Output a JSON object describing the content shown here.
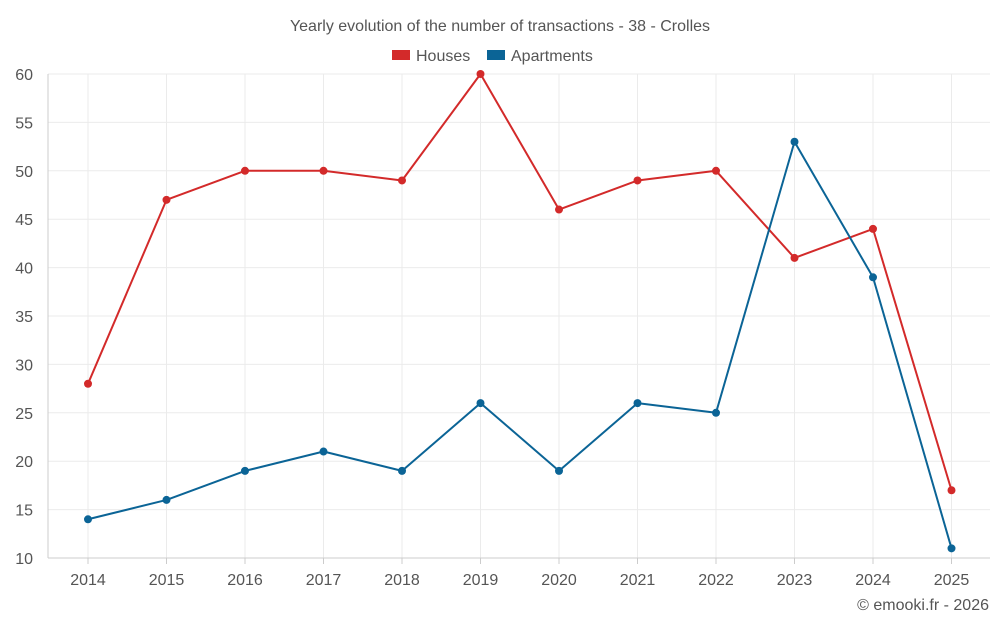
{
  "chart_data": {
    "type": "line",
    "title": "Yearly evolution of the number of transactions - 38 - Crolles",
    "categories": [
      "2014",
      "2015",
      "2016",
      "2017",
      "2018",
      "2019",
      "2020",
      "2021",
      "2022",
      "2023",
      "2024",
      "2025"
    ],
    "series": [
      {
        "name": "Houses",
        "color": "#d32a2a",
        "values": [
          28,
          47,
          50,
          50,
          49,
          60,
          46,
          49,
          50,
          41,
          44,
          17
        ]
      },
      {
        "name": "Apartments",
        "color": "#0b6496",
        "values": [
          14,
          16,
          19,
          21,
          19,
          26,
          19,
          26,
          25,
          53,
          39,
          11
        ]
      }
    ],
    "ylim": [
      10,
      60
    ],
    "yticks": [
      "10",
      "15",
      "20",
      "25",
      "30",
      "35",
      "40",
      "45",
      "50",
      "55",
      "60"
    ],
    "legend_position": "top-center",
    "grid": true
  },
  "credit": "© emooki.fr - 2026"
}
